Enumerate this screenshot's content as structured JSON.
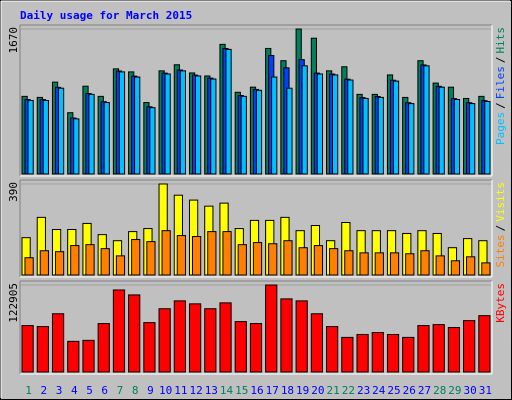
{
  "chart_data": [
    {
      "type": "bar",
      "title": "Daily usage for March 2015",
      "legend_separator": "/",
      "ylim": [
        0,
        1670
      ],
      "yticks": [
        1670
      ],
      "series": [
        {
          "name": "Hits",
          "color": "#00805c",
          "values": [
            894,
            882,
            1058,
            706,
            1011,
            894,
            1211,
            1176,
            823,
            1188,
            1258,
            1164,
            1129,
            1493,
            941,
            1000,
            1446,
            1305,
            1670,
            1564,
            1188,
            1235,
            917,
            917,
            1141,
            882,
            1305,
            1047,
            1000,
            870,
            894
          ]
        },
        {
          "name": "Files",
          "color": "#0040ff",
          "values": [
            857,
            857,
            998,
            645,
            927,
            833,
            1186,
            1127,
            774,
            1162,
            1198,
            1139,
            1104,
            1445,
            904,
            974,
            1364,
            1223,
            1317,
            1162,
            1151,
            1092,
            880,
            892,
            1080,
            821,
            1256,
            1010,
            868,
            821,
            845
          ]
        },
        {
          "name": "Pages",
          "color": "#00c0ff",
          "values": [
            847,
            847,
            988,
            635,
            917,
            823,
            1176,
            1117,
            764,
            1152,
            1188,
            1129,
            1094,
            1435,
            894,
            964,
            1117,
            988,
            1246,
            1152,
            1141,
            1082,
            870,
            882,
            1070,
            811,
            1246,
            1000,
            858,
            811,
            835
          ]
        }
      ]
    },
    {
      "type": "bar",
      "legend_separator": "/",
      "ylim": [
        0,
        390
      ],
      "yticks": [
        390
      ],
      "series": [
        {
          "name": "Visits",
          "color": "#ffff00",
          "values": [
            160,
            247,
            195,
            195,
            221,
            173,
            147,
            186,
            199,
            390,
            342,
            321,
            295,
            308,
            199,
            234,
            234,
            247,
            190,
            212,
            147,
            225,
            190,
            190,
            190,
            178,
            190,
            178,
            117,
            156,
            147
          ]
        },
        {
          "name": "Sites",
          "color": "#ff8000",
          "values": [
            74,
            104,
            100,
            126,
            130,
            113,
            82,
            152,
            143,
            190,
            169,
            165,
            186,
            186,
            130,
            139,
            134,
            147,
            117,
            126,
            113,
            104,
            95,
            95,
            95,
            91,
            104,
            82,
            61,
            78,
            52
          ]
        }
      ]
    },
    {
      "type": "bar",
      "ylim": [
        0,
        122905
      ],
      "yticks": [
        122905
      ],
      "categories": [
        "1",
        "2",
        "3",
        "4",
        "5",
        "6",
        "7",
        "8",
        "9",
        "10",
        "11",
        "12",
        "13",
        "14",
        "15",
        "16",
        "17",
        "18",
        "19",
        "20",
        "21",
        "22",
        "23",
        "24",
        "25",
        "26",
        "27",
        "28",
        "29",
        "30",
        "31"
      ],
      "category_label_colors": [
        "#00805c",
        "#0000ff",
        "#0000ff",
        "#0000ff",
        "#0000ff",
        "#0000ff",
        "#00805c",
        "#00805c",
        "#0000ff",
        "#0000ff",
        "#0000ff",
        "#0000ff",
        "#0000ff",
        "#00805c",
        "#00805c",
        "#0000ff",
        "#0000ff",
        "#0000ff",
        "#0000ff",
        "#0000ff",
        "#00805c",
        "#00805c",
        "#0000ff",
        "#0000ff",
        "#0000ff",
        "#0000ff",
        "#0000ff",
        "#00805c",
        "#00805c",
        "#0000ff",
        "#0000ff"
      ],
      "series": [
        {
          "name": "KBytes",
          "color": "#ff0000",
          "values": [
            65600,
            64200,
            82300,
            43300,
            44700,
            68400,
            115900,
            108900,
            69800,
            89400,
            100500,
            96300,
            89400,
            97700,
            71200,
            68400,
            122905,
            103300,
            100500,
            82300,
            64200,
            48900,
            53000,
            55800,
            53000,
            48900,
            65600,
            67000,
            62800,
            72600,
            79600
          ]
        }
      ]
    }
  ]
}
